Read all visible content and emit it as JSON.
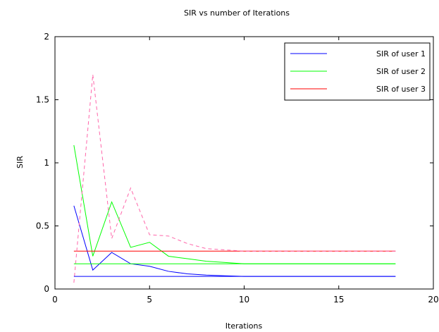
{
  "chart_data": {
    "type": "line",
    "title": "SIR vs number of Iterations",
    "xlabel": "Iterations",
    "ylabel": "SIR",
    "xlim": [
      0,
      20
    ],
    "ylim": [
      0,
      2
    ],
    "xticks": [
      0,
      5,
      10,
      15,
      20
    ],
    "yticks": [
      0,
      0.5,
      1,
      1.5,
      2
    ],
    "xtick_labels": [
      "0",
      "5",
      "10",
      "15",
      "20"
    ],
    "ytick_labels": [
      "0",
      "0.5",
      "1",
      "1.5",
      "2"
    ],
    "grid": false,
    "legend_position": "top-right",
    "x": [
      1,
      2,
      3,
      4,
      5,
      6,
      7,
      8,
      9,
      10,
      11,
      12,
      13,
      14,
      15,
      16,
      17,
      18
    ],
    "series": [
      {
        "name": "SIR of user 1",
        "color": "#0000ff",
        "style": "solid",
        "values": [
          0.66,
          0.15,
          0.29,
          0.2,
          0.18,
          0.14,
          0.12,
          0.11,
          0.105,
          0.1,
          0.1,
          0.1,
          0.1,
          0.1,
          0.1,
          0.1,
          0.1,
          0.1
        ]
      },
      {
        "name": "SIR of user 2",
        "color": "#00ff00",
        "style": "solid",
        "values": [
          1.14,
          0.26,
          0.69,
          0.33,
          0.37,
          0.26,
          0.24,
          0.22,
          0.21,
          0.2,
          0.2,
          0.2,
          0.2,
          0.2,
          0.2,
          0.2,
          0.2,
          0.2
        ]
      },
      {
        "name": "SIR of user 3",
        "color": "#ff0000",
        "style": "solid",
        "values": [
          0.3,
          0.3,
          0.3,
          0.3,
          0.3,
          0.3,
          0.3,
          0.3,
          0.3,
          0.3,
          0.3,
          0.3,
          0.3,
          0.3,
          0.3,
          0.3,
          0.3,
          0.3
        ]
      },
      {
        "color": "#ff66aa",
        "style": "dashed",
        "values": [
          0.05,
          1.7,
          0.4,
          0.8,
          0.43,
          0.42,
          0.36,
          0.32,
          0.31,
          0.3,
          0.3,
          0.3,
          0.3,
          0.3,
          0.3,
          0.3,
          0.3,
          0.3
        ]
      },
      {
        "color": "#0000ff",
        "style": "solid",
        "values": [
          0.1,
          0.1,
          0.1,
          0.1,
          0.1,
          0.1,
          0.1,
          0.1,
          0.1,
          0.1,
          0.1,
          0.1,
          0.1,
          0.1,
          0.1,
          0.1,
          0.1,
          0.1
        ]
      },
      {
        "color": "#00ff00",
        "style": "solid",
        "values": [
          0.2,
          0.2,
          0.2,
          0.2,
          0.2,
          0.2,
          0.2,
          0.2,
          0.2,
          0.2,
          0.2,
          0.2,
          0.2,
          0.2,
          0.2,
          0.2,
          0.2,
          0.2
        ]
      }
    ],
    "legend": [
      {
        "label": "SIR of user 1",
        "color": "#0000ff"
      },
      {
        "label": "SIR of user 2",
        "color": "#00ff00"
      },
      {
        "label": "SIR of user 3",
        "color": "#ff0000"
      }
    ]
  }
}
